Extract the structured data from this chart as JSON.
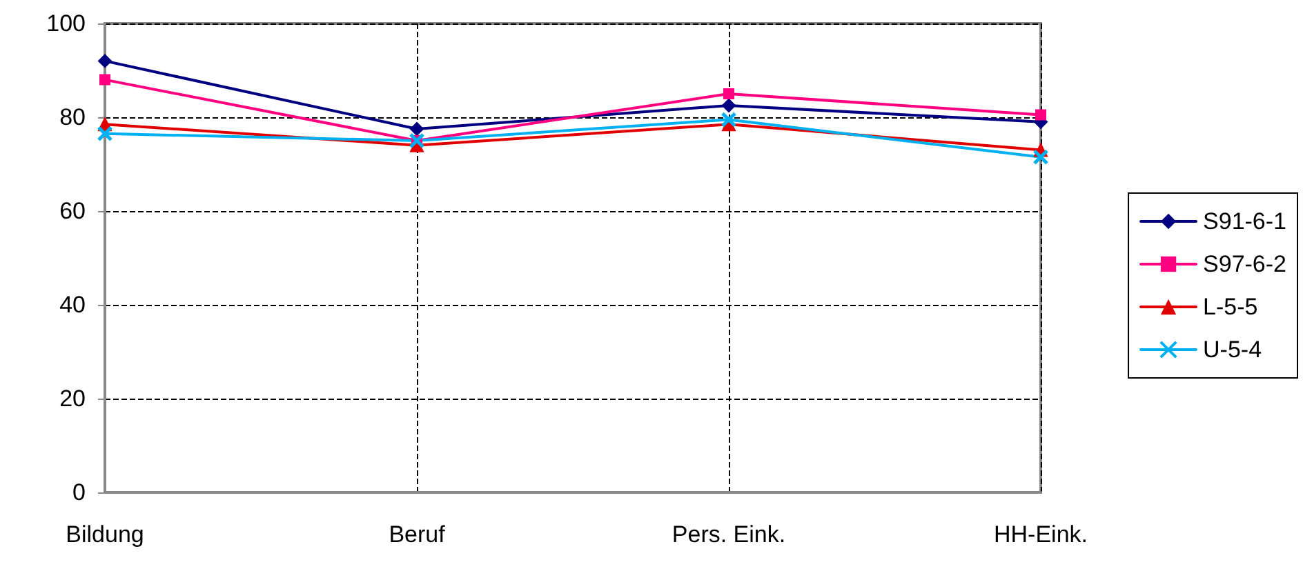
{
  "chart_data": {
    "type": "line",
    "categories": [
      "Bildung",
      "Beruf",
      "Pers. Eink.",
      "HH-Eink."
    ],
    "series": [
      {
        "name": "S91-6-1",
        "color": "#000080",
        "marker": "diamond",
        "values": [
          92,
          77.5,
          82.5,
          79
        ]
      },
      {
        "name": "S97-6-2",
        "color": "#ff0080",
        "marker": "square",
        "values": [
          88,
          75,
          85,
          80.5
        ]
      },
      {
        "name": "L-5-5",
        "color": "#e00000",
        "marker": "triangle",
        "values": [
          78.5,
          74,
          78.5,
          73
        ]
      },
      {
        "name": "U-5-4",
        "color": "#00b0f0",
        "marker": "cross",
        "values": [
          76.5,
          75,
          79.5,
          71.5
        ]
      }
    ],
    "ylim": [
      0,
      100
    ],
    "yticks": [
      0,
      20,
      40,
      60,
      80,
      100
    ],
    "grid": true,
    "legend": "right"
  }
}
